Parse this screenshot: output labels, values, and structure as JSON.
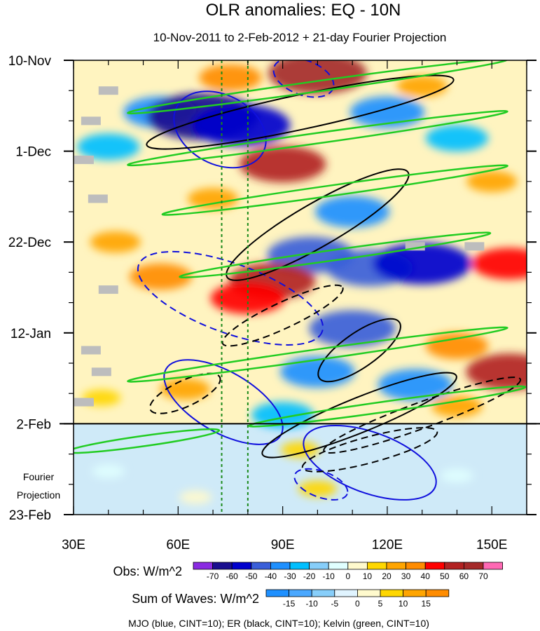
{
  "chart_data": {
    "type": "heatmap",
    "title": "OLR anomalies: EQ - 10N",
    "subtitle": "10-Nov-2011 to 2-Feb-2012 + 21-day Fourier Projection",
    "xlabel": "",
    "ylabel": "",
    "x_ticks": [
      "30E",
      "60E",
      "90E",
      "120E",
      "150E"
    ],
    "x_tick_values": [
      30,
      60,
      90,
      120,
      150
    ],
    "x_range": [
      30,
      160
    ],
    "y_ticks": [
      "10-Nov",
      "1-Dec",
      "22-Dec",
      "12-Jan",
      "2-Feb",
      "23-Feb"
    ],
    "y_tick_days": [
      0,
      21,
      42,
      63,
      84,
      105
    ],
    "y_range_days": [
      0,
      105
    ],
    "projection_start_day": 84,
    "projection_label": [
      "Fourier",
      "Projection"
    ],
    "reference_lines_lon": [
      72.5,
      80
    ],
    "obs_colorbar": {
      "label": "Obs: W/m^2",
      "levels": [
        "-70",
        "-60",
        "-50",
        "-40",
        "-30",
        "-20",
        "-10",
        "0",
        "10",
        "20",
        "30",
        "40",
        "50",
        "60",
        "70"
      ],
      "colors": [
        "#8a2be2",
        "#1a0f8f",
        "#0000cd",
        "#3a5fd9",
        "#1e90ff",
        "#00bfff",
        "#87cefa",
        "#e0ffff",
        "#fffacd",
        "#ffd700",
        "#ffa500",
        "#ff8c00",
        "#ff0000",
        "#b22222",
        "#a52a2a",
        "#ff69b4"
      ]
    },
    "waves_colorbar": {
      "label": "Sum of Waves: W/m^2",
      "levels": [
        "-15",
        "-10",
        "-5",
        "0",
        "5",
        "10",
        "15"
      ],
      "colors": [
        "#1e90ff",
        "#4aa8ff",
        "#87cefa",
        "#e0f4ff",
        "#fffacd",
        "#ffd700",
        "#ffa500",
        "#ff8c00"
      ]
    },
    "legend_note": "MJO (blue, CINT=10); ER (black, CINT=10); Kelvin (green, CINT=10)",
    "anomaly_field": [
      {
        "lon": 75,
        "day": 4,
        "value": 30
      },
      {
        "lon": 100,
        "day": 3,
        "value": 60
      },
      {
        "lon": 130,
        "day": 6,
        "value": 20
      },
      {
        "lon": 55,
        "day": 12,
        "value": -40
      },
      {
        "lon": 67,
        "day": 13,
        "value": -70
      },
      {
        "lon": 78,
        "day": 15,
        "value": -60
      },
      {
        "lon": 120,
        "day": 12,
        "value": -40
      },
      {
        "lon": 140,
        "day": 18,
        "value": -30
      },
      {
        "lon": 40,
        "day": 20,
        "value": -30
      },
      {
        "lon": 90,
        "day": 24,
        "value": 50
      },
      {
        "lon": 70,
        "day": 32,
        "value": 20
      },
      {
        "lon": 110,
        "day": 35,
        "value": -40
      },
      {
        "lon": 150,
        "day": 28,
        "value": 20
      },
      {
        "lon": 42,
        "day": 42,
        "value": 20
      },
      {
        "lon": 98,
        "day": 45,
        "value": -50
      },
      {
        "lon": 115,
        "day": 48,
        "value": -50
      },
      {
        "lon": 130,
        "day": 47,
        "value": -60
      },
      {
        "lon": 155,
        "day": 47,
        "value": 40
      },
      {
        "lon": 55,
        "day": 50,
        "value": 30
      },
      {
        "lon": 87,
        "day": 51,
        "value": 50
      },
      {
        "lon": 80,
        "day": 55,
        "value": 40
      },
      {
        "lon": 110,
        "day": 62,
        "value": -50
      },
      {
        "lon": 140,
        "day": 66,
        "value": 30
      },
      {
        "lon": 100,
        "day": 72,
        "value": -40
      },
      {
        "lon": 128,
        "day": 75,
        "value": -40
      },
      {
        "lon": 155,
        "day": 72,
        "value": 50
      },
      {
        "lon": 62,
        "day": 76,
        "value": 20
      },
      {
        "lon": 90,
        "day": 82,
        "value": -30
      },
      {
        "lon": 140,
        "day": 80,
        "value": 20
      },
      {
        "lon": 38,
        "day": 78,
        "value": 10
      },
      {
        "lon": 95,
        "day": 90,
        "value": 10
      },
      {
        "lon": 100,
        "day": 99,
        "value": 10
      },
      {
        "lon": 40,
        "day": 95,
        "value": -5
      },
      {
        "lon": 140,
        "day": 96,
        "value": -5
      },
      {
        "lon": 65,
        "day": 101,
        "value": 5
      }
    ],
    "wave_contours": [
      {
        "wave": "MJO",
        "color": "#1010dd",
        "sign": "positive",
        "lon": 72,
        "day": 16,
        "rx": 14,
        "ry": 8,
        "angle": 28
      },
      {
        "wave": "MJO",
        "color": "#1010dd",
        "sign": "negative",
        "lon": 96,
        "day": 4,
        "rx": 9,
        "ry": 4,
        "angle": 20
      },
      {
        "wave": "MJO",
        "color": "#1010dd",
        "sign": "negative",
        "lon": 75,
        "day": 55,
        "rx": 28,
        "ry": 8,
        "angle": 20
      },
      {
        "wave": "MJO",
        "color": "#1010dd",
        "sign": "positive",
        "lon": 73,
        "day": 79,
        "rx": 19,
        "ry": 7,
        "angle": 30
      },
      {
        "wave": "MJO",
        "color": "#1010dd",
        "sign": "positive",
        "lon": 115,
        "day": 93,
        "rx": 20,
        "ry": 7,
        "angle": 20
      },
      {
        "wave": "MJO",
        "color": "#1010dd",
        "sign": "negative",
        "lon": 101,
        "day": 98,
        "rx": 8,
        "ry": 3,
        "angle": 20
      },
      {
        "wave": "ER",
        "color": "#000000",
        "sign": "positive",
        "lon": 95,
        "day": 12,
        "rx": 45,
        "ry": 4,
        "angle": -12
      },
      {
        "wave": "ER",
        "color": "#000000",
        "sign": "positive",
        "lon": 100,
        "day": 38,
        "rx": 30,
        "ry": 5,
        "angle": -30
      },
      {
        "wave": "ER",
        "color": "#000000",
        "sign": "positive",
        "lon": 112,
        "day": 67,
        "rx": 14,
        "ry": 4,
        "angle": -35
      },
      {
        "wave": "ER",
        "color": "#000000",
        "sign": "positive",
        "lon": 112,
        "day": 82,
        "rx": 30,
        "ry": 4,
        "angle": -22
      },
      {
        "wave": "ER",
        "color": "#000000",
        "sign": "negative",
        "lon": 62,
        "day": 77,
        "rx": 11,
        "ry": 3,
        "angle": -25
      },
      {
        "wave": "ER",
        "color": "#000000",
        "sign": "negative",
        "lon": 90,
        "day": 59,
        "rx": 19,
        "ry": 3,
        "angle": -25
      },
      {
        "wave": "ER",
        "color": "#000000",
        "sign": "negative",
        "lon": 130,
        "day": 82,
        "rx": 30,
        "ry": 3,
        "angle": -20
      },
      {
        "wave": "ER",
        "color": "#000000",
        "sign": "negative",
        "lon": 115,
        "day": 90,
        "rx": 20,
        "ry": 3,
        "angle": -15
      },
      {
        "wave": "Kelvin",
        "color": "#22cc22",
        "sign": "positive",
        "lon": 100,
        "day": 6,
        "rx": 55,
        "ry": 1.2,
        "angle": -8
      },
      {
        "wave": "Kelvin",
        "color": "#22cc22",
        "sign": "positive",
        "lon": 100,
        "day": 18,
        "rx": 55,
        "ry": 1.2,
        "angle": -8
      },
      {
        "wave": "Kelvin",
        "color": "#22cc22",
        "sign": "positive",
        "lon": 105,
        "day": 30,
        "rx": 50,
        "ry": 1.2,
        "angle": -8
      },
      {
        "wave": "Kelvin",
        "color": "#22cc22",
        "sign": "positive",
        "lon": 105,
        "day": 45,
        "rx": 45,
        "ry": 1.2,
        "angle": -8
      },
      {
        "wave": "Kelvin",
        "color": "#22cc22",
        "sign": "positive",
        "lon": 100,
        "day": 68,
        "rx": 55,
        "ry": 1.2,
        "angle": -8
      },
      {
        "wave": "Kelvin",
        "color": "#22cc22",
        "sign": "positive",
        "lon": 120,
        "day": 80,
        "rx": 40,
        "ry": 1.2,
        "angle": -8
      },
      {
        "wave": "Kelvin",
        "color": "#22cc22",
        "sign": "positive",
        "lon": 50,
        "day": 88,
        "rx": 22,
        "ry": 1.2,
        "angle": -8
      }
    ],
    "missing_data": [
      {
        "lon": 40,
        "day": 7
      },
      {
        "lon": 35,
        "day": 14
      },
      {
        "lon": 33,
        "day": 23
      },
      {
        "lon": 37,
        "day": 32
      },
      {
        "lon": 40,
        "day": 53
      },
      {
        "lon": 35,
        "day": 67
      },
      {
        "lon": 38,
        "day": 72
      },
      {
        "lon": 33,
        "day": 79
      },
      {
        "lon": 128,
        "day": 43
      },
      {
        "lon": 145,
        "day": 43
      }
    ]
  }
}
